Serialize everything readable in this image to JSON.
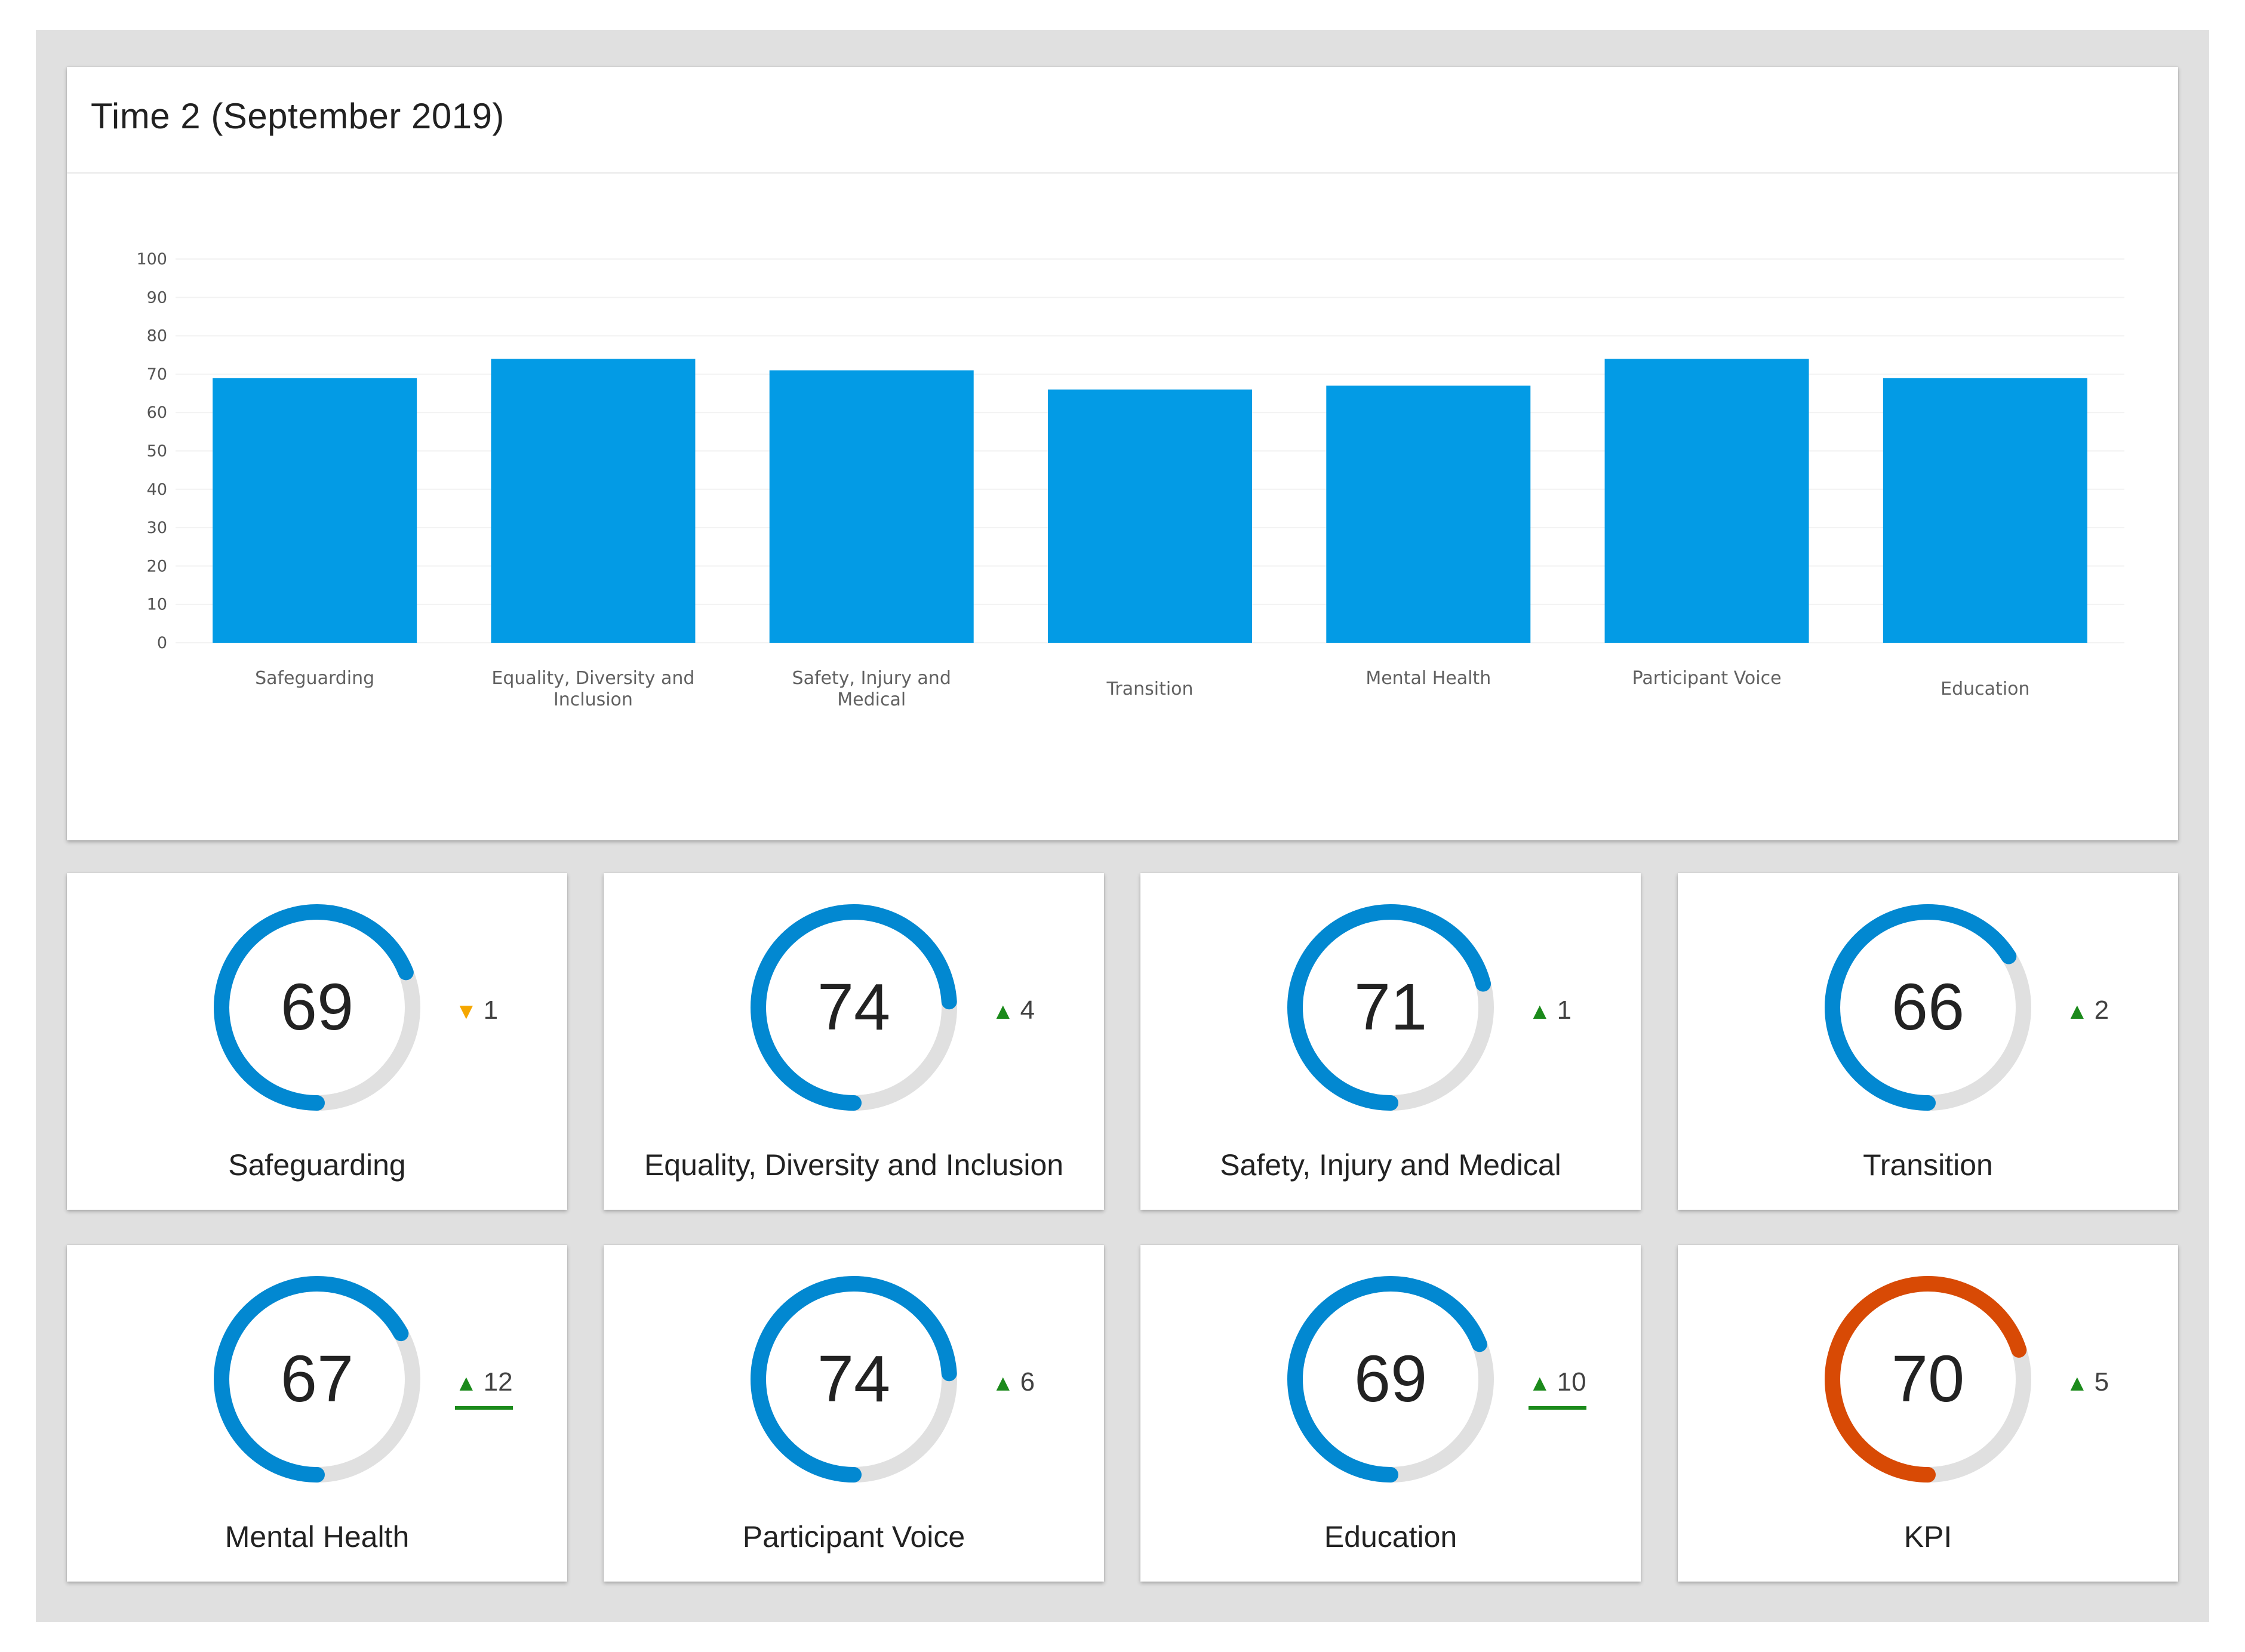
{
  "chart_card": {
    "title": "Time 2 (September 2019)"
  },
  "chart_data": {
    "type": "bar",
    "title": "Time 2 (September 2019)",
    "xlabel": "",
    "ylabel": "",
    "ylim": [
      0,
      100
    ],
    "yticks": [
      0,
      10,
      20,
      30,
      40,
      50,
      60,
      70,
      80,
      90,
      100
    ],
    "grid": true,
    "bar_color": "#039be5",
    "categories": [
      [
        "Safeguarding"
      ],
      [
        "Equality, Diversity and",
        "Inclusion"
      ],
      [
        "Safety, Injury and",
        "Medical"
      ],
      [
        "Transition"
      ],
      [
        "Mental Health"
      ],
      [
        "Participant Voice"
      ],
      [
        "Education"
      ]
    ],
    "values": [
      69,
      74,
      71,
      66,
      67,
      74,
      69
    ]
  },
  "gauges": [
    {
      "value": "69",
      "label": "Safeguarding",
      "delta": "1",
      "direction": "down",
      "highlight": false,
      "color": "#0288d1",
      "fraction": 0.69
    },
    {
      "value": "74",
      "label": "Equality, Diversity and Inclusion",
      "delta": "4",
      "direction": "up",
      "highlight": false,
      "color": "#0288d1",
      "fraction": 0.74
    },
    {
      "value": "71",
      "label": "Safety, Injury and Medical",
      "delta": "1",
      "direction": "up",
      "highlight": false,
      "color": "#0288d1",
      "fraction": 0.71
    },
    {
      "value": "66",
      "label": "Transition",
      "delta": "2",
      "direction": "up",
      "highlight": false,
      "color": "#0288d1",
      "fraction": 0.66
    },
    {
      "value": "67",
      "label": "Mental Health",
      "delta": "12",
      "direction": "up",
      "highlight": true,
      "color": "#0288d1",
      "fraction": 0.67
    },
    {
      "value": "74",
      "label": "Participant Voice",
      "delta": "6",
      "direction": "up",
      "highlight": false,
      "color": "#0288d1",
      "fraction": 0.74
    },
    {
      "value": "69",
      "label": "Education",
      "delta": "10",
      "direction": "up",
      "highlight": true,
      "color": "#0288d1",
      "fraction": 0.69
    },
    {
      "value": "70",
      "label": "KPI",
      "delta": "5",
      "direction": "up",
      "highlight": false,
      "color": "#d84a05",
      "fraction": 0.7
    }
  ],
  "icons": {
    "up": "▲",
    "down": "▼"
  },
  "colors": {
    "background": "#e0e0e0",
    "track": "#e0e0e0",
    "up": "#1b8a1b",
    "down": "#f5a700"
  }
}
